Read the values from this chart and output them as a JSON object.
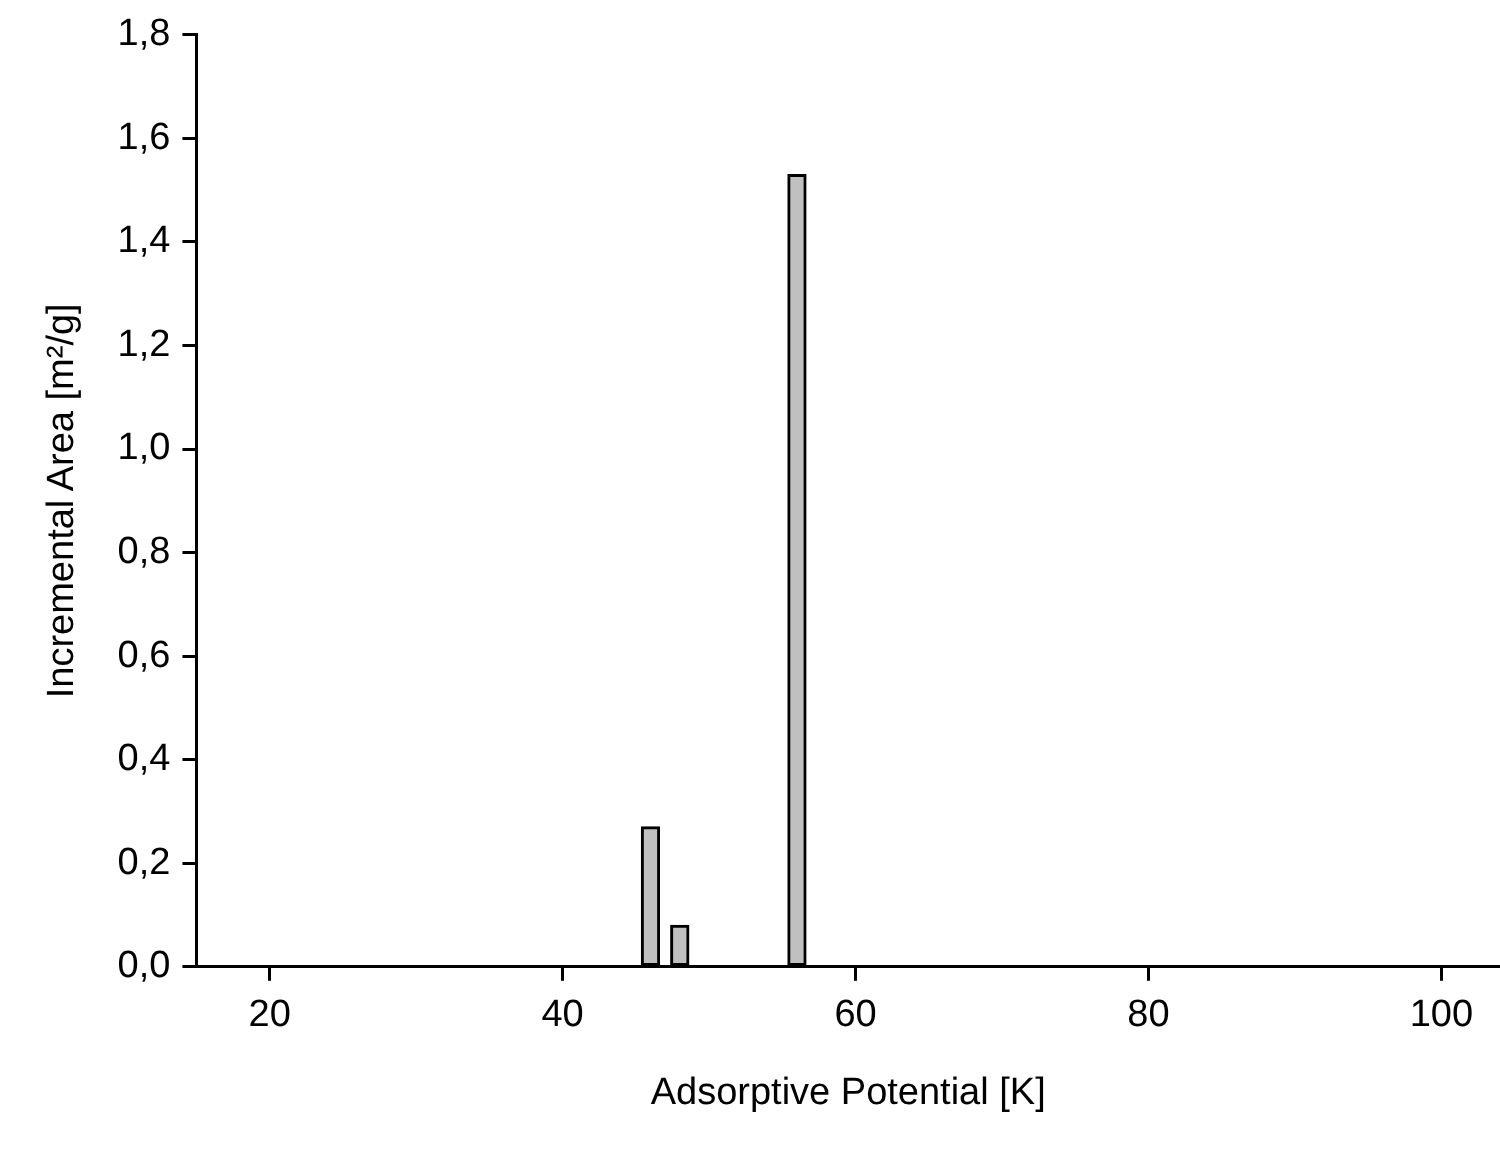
{
  "chart_data": {
    "type": "bar",
    "xlabel": "Adsorptive Potential [K]",
    "ylabel": "Incremental Area [m²/g]",
    "x": [
      46,
      48,
      56
    ],
    "values": [
      0.27,
      0.08,
      1.53
    ],
    "color": "#c0c0c0",
    "xlim": [
      15,
      104
    ],
    "xticks": [
      20,
      40,
      60,
      80,
      100
    ],
    "ylim": [
      0,
      1.8
    ],
    "yticks": [
      {
        "value": 0,
        "label": "0,0"
      },
      {
        "value": 0.2,
        "label": "0,2"
      },
      {
        "value": 0.4,
        "label": "0,4"
      },
      {
        "value": 0.6,
        "label": "0,6"
      },
      {
        "value": 0.8,
        "label": "0,8"
      },
      {
        "value": 1.0,
        "label": "1,0"
      },
      {
        "value": 1.2,
        "label": "1,2"
      },
      {
        "value": 1.4,
        "label": "1,4"
      },
      {
        "value": 1.6,
        "label": "1,6"
      },
      {
        "value": 1.8,
        "label": "1,8"
      }
    ],
    "grid": false,
    "legend": false
  }
}
